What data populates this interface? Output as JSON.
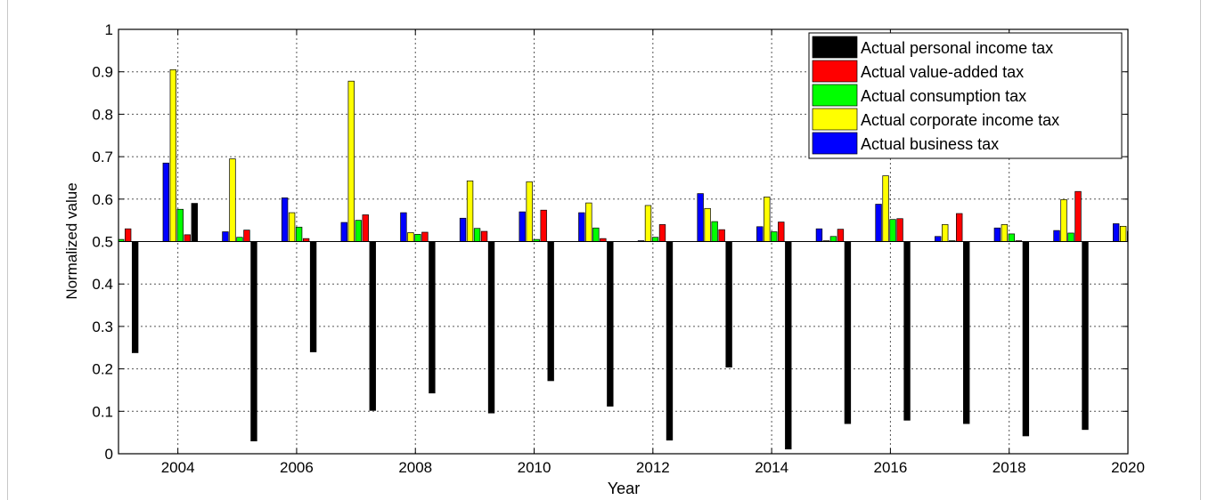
{
  "chart_data": {
    "type": "bar",
    "xlabel": "Year",
    "ylabel": "Normalized value",
    "ylim": [
      0,
      1
    ],
    "xlim": [
      2003,
      2020
    ],
    "baseline": 0.5,
    "grid": true,
    "legend_position": "top-right",
    "x_ticks": [
      "2004",
      "2006",
      "2008",
      "2010",
      "2012",
      "2014",
      "2016",
      "2018",
      "2020"
    ],
    "y_ticks": [
      "0",
      "0.1",
      "0.2",
      "0.3",
      "0.4",
      "0.5",
      "0.6",
      "0.7",
      "0.8",
      "0.9",
      "1"
    ],
    "legend_order": [
      "Actual personal income tax",
      "Actual value-added tax",
      "Actual consumption tax",
      "Actual corporate income tax",
      "Actual business tax"
    ],
    "series": [
      {
        "name": "Actual business tax",
        "color": "#0000ff",
        "points": [
          [
            2003.8,
            0.685
          ],
          [
            2004.8,
            0.523
          ],
          [
            2005.8,
            0.603
          ],
          [
            2006.8,
            0.545
          ],
          [
            2007.8,
            0.568
          ],
          [
            2008.8,
            0.555
          ],
          [
            2009.8,
            0.57
          ],
          [
            2010.8,
            0.568
          ],
          [
            2011.8,
            0.502
          ],
          [
            2012.8,
            0.613
          ],
          [
            2013.8,
            0.535
          ],
          [
            2014.8,
            0.53
          ],
          [
            2015.8,
            0.588
          ],
          [
            2016.8,
            0.512
          ],
          [
            2017.8,
            0.532
          ],
          [
            2018.8,
            0.526
          ],
          [
            2019.8,
            0.542
          ]
        ]
      },
      {
        "name": "Actual corporate income tax",
        "color": "#ffff00",
        "points": [
          [
            2003.92,
            0.905
          ],
          [
            2004.92,
            0.695
          ],
          [
            2005.92,
            0.568
          ],
          [
            2006.92,
            0.878
          ],
          [
            2007.92,
            0.521
          ],
          [
            2008.92,
            0.643
          ],
          [
            2009.92,
            0.641
          ],
          [
            2010.92,
            0.591
          ],
          [
            2011.92,
            0.585
          ],
          [
            2012.92,
            0.578
          ],
          [
            2013.92,
            0.605
          ],
          [
            2014.92,
            0.502
          ],
          [
            2015.92,
            0.655
          ],
          [
            2016.92,
            0.54
          ],
          [
            2017.92,
            0.54
          ],
          [
            2018.92,
            0.599
          ],
          [
            2019.92,
            0.536
          ]
        ]
      },
      {
        "name": "Actual consumption tax",
        "color": "#00ff00",
        "points": [
          [
            2003.04,
            0.505
          ],
          [
            2004.04,
            0.576
          ],
          [
            2005.04,
            0.51
          ],
          [
            2006.04,
            0.534
          ],
          [
            2007.04,
            0.55
          ],
          [
            2008.04,
            0.517
          ],
          [
            2009.04,
            0.531
          ],
          [
            2010.04,
            0.505
          ],
          [
            2011.04,
            0.532
          ],
          [
            2012.04,
            0.51
          ],
          [
            2013.04,
            0.547
          ],
          [
            2014.04,
            0.523
          ],
          [
            2015.04,
            0.512
          ],
          [
            2016.04,
            0.552
          ],
          [
            2017.04,
            0.502
          ],
          [
            2018.04,
            0.518
          ],
          [
            2019.04,
            0.52
          ],
          [
            2020.04,
            0.524
          ]
        ]
      },
      {
        "name": "Actual value-added tax",
        "color": "#ff0000",
        "points": [
          [
            2003.16,
            0.53
          ],
          [
            2004.16,
            0.516
          ],
          [
            2005.16,
            0.527
          ],
          [
            2006.16,
            0.507
          ],
          [
            2007.16,
            0.563
          ],
          [
            2008.16,
            0.522
          ],
          [
            2009.16,
            0.524
          ],
          [
            2010.16,
            0.574
          ],
          [
            2011.16,
            0.507
          ],
          [
            2012.16,
            0.54
          ],
          [
            2013.16,
            0.528
          ],
          [
            2014.16,
            0.546
          ],
          [
            2015.16,
            0.529
          ],
          [
            2016.16,
            0.554
          ],
          [
            2017.16,
            0.566
          ],
          [
            2018.16,
            0.502
          ],
          [
            2019.16,
            0.618
          ]
        ]
      },
      {
        "name": "Actual personal income tax",
        "color": "#000000",
        "points": [
          [
            2003.28,
            0.238
          ],
          [
            2004.28,
            0.59
          ],
          [
            2005.28,
            0.03
          ],
          [
            2006.28,
            0.24
          ],
          [
            2007.28,
            0.102
          ],
          [
            2008.28,
            0.143
          ],
          [
            2009.28,
            0.096
          ],
          [
            2010.28,
            0.172
          ],
          [
            2011.28,
            0.112
          ],
          [
            2012.28,
            0.032
          ],
          [
            2013.28,
            0.204
          ],
          [
            2014.28,
            0.011
          ],
          [
            2015.28,
            0.071
          ],
          [
            2016.28,
            0.079
          ],
          [
            2017.28,
            0.071
          ],
          [
            2018.28,
            0.042
          ],
          [
            2019.28,
            0.057
          ]
        ]
      }
    ]
  }
}
